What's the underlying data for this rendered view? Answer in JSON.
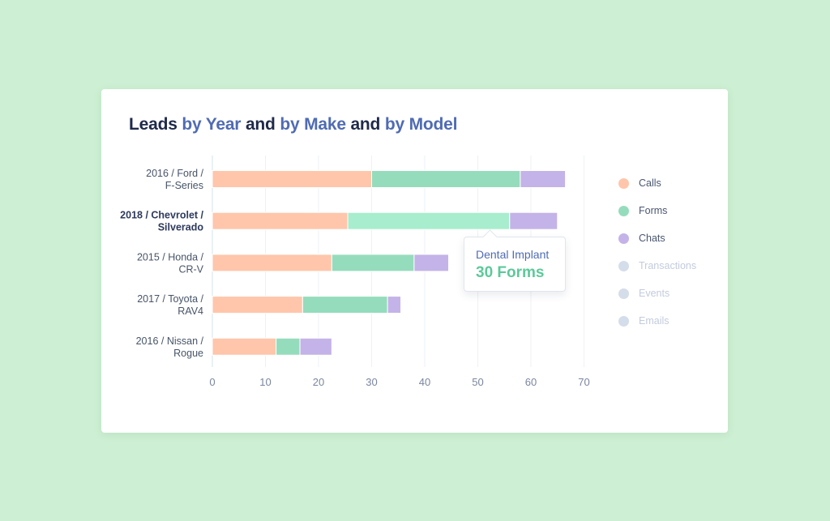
{
  "title": {
    "w1": "Leads",
    "w2": "by Year",
    "w3": "and",
    "w4": "by Make",
    "w5": "and",
    "w6": "by Model"
  },
  "chart_data": {
    "type": "bar",
    "orientation": "horizontal",
    "stacked": true,
    "title": "Leads by Year and by Make and by Model",
    "categories": [
      "2016 / Ford / F-Series",
      "2018 / Chevrolet / Silverado",
      "2015 / Honda / CR-V",
      "2017 / Toyota / RAV4",
      "2016 / Nissan / Rogue"
    ],
    "category_lines": [
      [
        "2016 / Ford /",
        "F-Series"
      ],
      [
        "2018 / Chevrolet /",
        "Silverado"
      ],
      [
        "2015 / Honda /",
        "CR-V"
      ],
      [
        "2017 / Toyota /",
        "RAV4"
      ],
      [
        "2016 / Nissan /",
        "Rogue"
      ]
    ],
    "highlighted_category": 1,
    "series": [
      {
        "name": "Calls",
        "color": "#ffc6ab",
        "values": [
          30,
          25.5,
          22.5,
          17,
          12
        ]
      },
      {
        "name": "Forms",
        "color": "#95dcbc",
        "highlight_color": "#a8edcd",
        "values": [
          28,
          30.5,
          15.5,
          16,
          4.5
        ]
      },
      {
        "name": "Chats",
        "color": "#c4b3e8",
        "values": [
          8.5,
          9,
          6.5,
          2.5,
          6
        ]
      }
    ],
    "xlim": [
      0,
      70
    ],
    "xticks": [
      0,
      10,
      20,
      30,
      40,
      50,
      60,
      70
    ],
    "grid": true,
    "legend_position": "right"
  },
  "legend": [
    {
      "name": "Calls",
      "color": "#ffc6ab",
      "active": true
    },
    {
      "name": "Forms",
      "color": "#95dcbc",
      "active": true
    },
    {
      "name": "Chats",
      "color": "#c4b3e8",
      "active": true
    },
    {
      "name": "Transactions",
      "color": "#d4ddea",
      "active": false
    },
    {
      "name": "Events",
      "color": "#d4ddea",
      "active": false
    },
    {
      "name": "Emails",
      "color": "#d4ddea",
      "active": false
    }
  ],
  "tooltip": {
    "title": "Dental Implant",
    "value": "30 Forms"
  }
}
